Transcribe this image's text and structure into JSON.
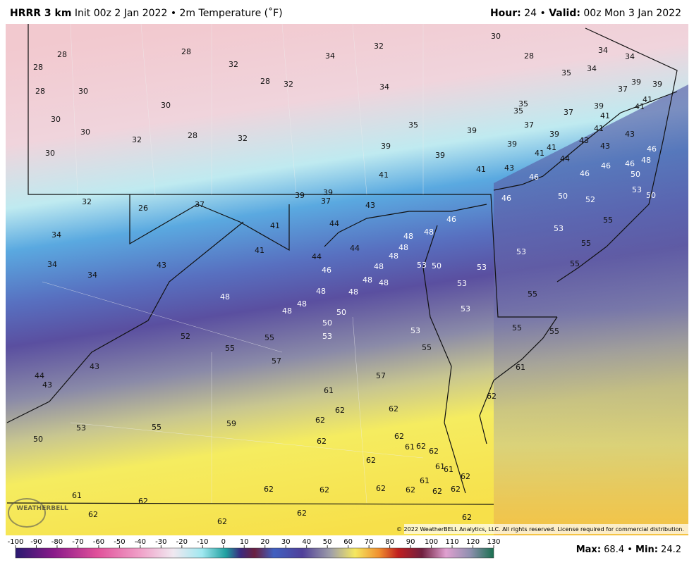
{
  "header": {
    "model": "HRRR 3 km",
    "init": "Init 00z 2 Jan 2022 • 2m Temperature (˚F)",
    "hour_label": "Hour:",
    "hour": "24 •",
    "valid_label": "Valid:",
    "valid": "00z Mon 3 Jan 2022"
  },
  "map_labels": [
    28,
    28,
    28,
    32,
    34,
    32,
    30,
    28,
    34,
    34,
    28,
    30,
    28,
    32,
    34,
    35,
    34,
    30,
    30,
    30,
    32,
    28,
    32,
    30,
    35,
    35,
    37,
    39,
    41,
    39,
    37,
    39,
    41,
    41,
    35,
    39,
    37,
    39,
    41,
    43,
    43,
    39,
    39,
    39,
    41,
    41,
    43,
    46,
    48,
    44,
    46,
    46,
    41,
    41,
    43,
    46,
    46,
    50,
    32,
    26,
    37,
    39,
    39,
    37,
    43,
    46,
    50,
    52,
    53,
    50,
    41,
    44,
    46,
    48,
    48,
    34,
    41,
    44,
    48,
    48,
    44,
    53,
    55,
    53,
    55,
    34,
    34,
    43,
    46,
    48,
    53,
    50,
    53,
    55,
    48,
    48,
    48,
    48,
    53,
    55,
    48,
    48,
    48,
    50,
    53,
    55,
    50,
    52,
    53,
    53,
    55,
    55,
    55,
    55,
    57,
    61,
    43,
    44,
    43,
    57,
    61,
    62,
    62,
    62,
    62,
    53,
    55,
    59,
    50,
    62,
    62,
    62,
    61,
    62,
    62,
    61,
    61,
    62,
    61,
    61,
    62,
    62,
    62,
    62,
    62,
    62,
    62,
    62,
    62,
    62,
    62
  ],
  "copyright": "© 2022 WeatherBELL Analytics, LLC. All rights reserved. License required for commercial distribution.",
  "logo": "WEATHERBELL",
  "colorbar": {
    "ticks": [
      -100,
      -90,
      -80,
      -70,
      -60,
      -50,
      -40,
      -30,
      -20,
      -10,
      0,
      10,
      20,
      30,
      40,
      50,
      60,
      70,
      80,
      90,
      100,
      110,
      120,
      130
    ]
  },
  "footer": {
    "max_label": "Max:",
    "max": "68.4 •",
    "min_label": "Min:",
    "min": "24.2"
  }
}
